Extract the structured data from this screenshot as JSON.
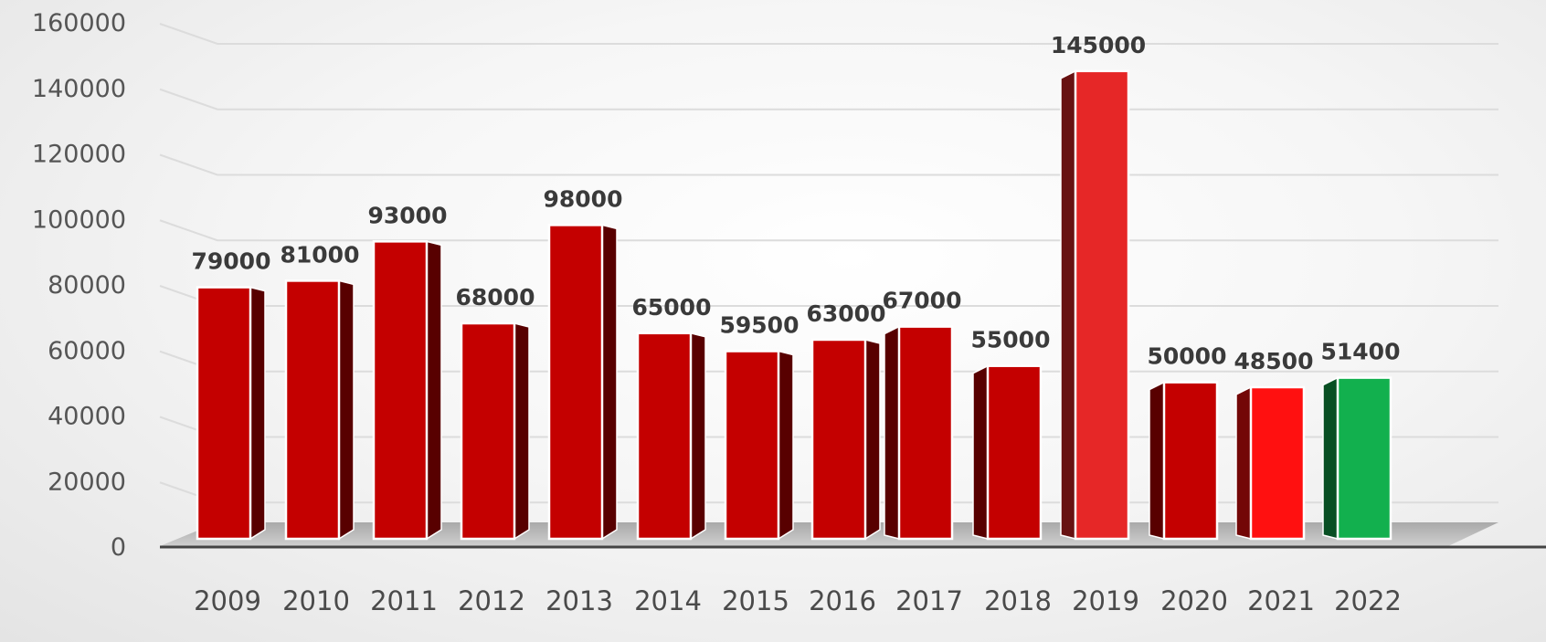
{
  "chart_data": {
    "type": "bar",
    "title": "",
    "xlabel": "",
    "ylabel": "",
    "categories": [
      "2009",
      "2010",
      "2011",
      "2012",
      "2013",
      "2014",
      "2015",
      "2016",
      "2017",
      "2018",
      "2019",
      "2020",
      "2021",
      "2022"
    ],
    "values": [
      79000,
      81000,
      93000,
      68000,
      98000,
      65000,
      59500,
      63000,
      67000,
      55000,
      145000,
      50000,
      48500,
      51400
    ],
    "ylim": [
      0,
      160000
    ],
    "yticks": [
      0,
      20000,
      40000,
      60000,
      80000,
      100000,
      120000,
      140000,
      160000
    ],
    "data_labels": true,
    "grid": true,
    "legend": "none",
    "style": "3d-bar",
    "colors": {
      "default": "#c40000",
      "highlight": "#e62727",
      "bright": "#ff1010",
      "green": "#12b04e"
    },
    "bar_colors": [
      "default",
      "default",
      "default",
      "default",
      "default",
      "default",
      "default",
      "default",
      "default",
      "default",
      "highlight",
      "default",
      "bright",
      "green"
    ]
  }
}
